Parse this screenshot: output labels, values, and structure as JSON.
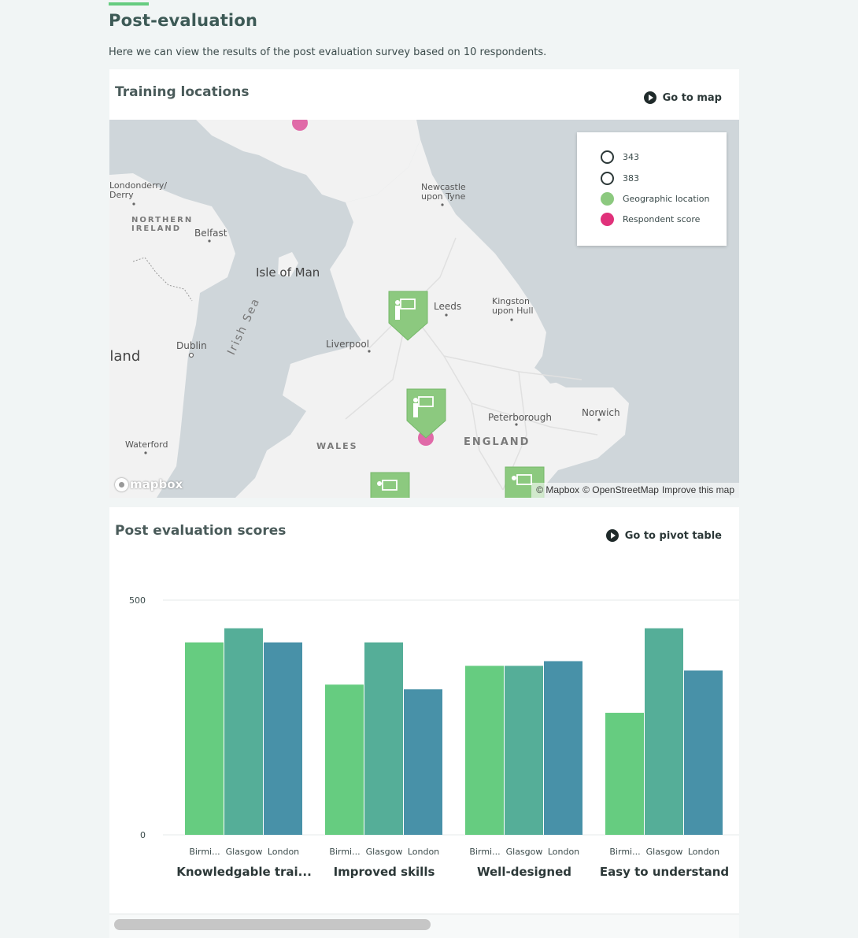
{
  "page": {
    "title": "Post-evaluation",
    "description": "Here we can view the results of the post evaluation survey based on 10 respondents."
  },
  "map_card": {
    "title": "Training locations",
    "link_label": "Go to map",
    "legend": [
      {
        "label": "343",
        "style": "outline"
      },
      {
        "label": "383",
        "style": "outline"
      },
      {
        "label": "Geographic location",
        "style": "filled",
        "color": "#8cc97f"
      },
      {
        "label": "Respondent score",
        "style": "filled",
        "color": "#e0317a"
      }
    ],
    "place_labels": {
      "londonderry": "Londonderry/\nDerry",
      "northern_ireland": "NORTHERN\nIRELAND",
      "belfast": "Belfast",
      "isle_of_man": "Isle of Man",
      "newcastle": "Newcastle\nupon Tyne",
      "leeds": "Leeds",
      "kingston": "Kingston\nupon Hull",
      "dublin": "Dublin",
      "ireland": "Ireland",
      "irish_sea": "Irish Sea",
      "liverpool": "Liverpool",
      "peterborough": "Peterborough",
      "norwich": "Norwich",
      "england": "ENGLAND",
      "wales": "WALES",
      "waterford": "Waterford"
    },
    "attribution": {
      "mapbox_logo": "mapbox",
      "mapbox": "© Mapbox",
      "osm": "© OpenStreetMap",
      "improve": "Improve this map"
    },
    "colors": {
      "land": "#f2f2f2",
      "water": "#cfd6da",
      "marker": "#8cc97f",
      "respondent": "#e06aa8"
    }
  },
  "chart_card": {
    "title": "Post evaluation scores",
    "link_label": "Go to pivot table"
  },
  "chart_data": {
    "type": "bar",
    "ylim": [
      0,
      500
    ],
    "yticks": [
      "0",
      "500"
    ],
    "groups": [
      {
        "label": "Knowledgable trai...",
        "bars": [
          {
            "label": "Birmi...",
            "value": 410
          },
          {
            "label": "Glasgow",
            "value": 440
          },
          {
            "label": "London",
            "value": 410
          }
        ]
      },
      {
        "label": "Improved skills",
        "bars": [
          {
            "label": "Birmi...",
            "value": 320
          },
          {
            "label": "Glasgow",
            "value": 410
          },
          {
            "label": "London",
            "value": 310
          }
        ]
      },
      {
        "label": "Well-designed",
        "bars": [
          {
            "label": "Birmi...",
            "value": 360
          },
          {
            "label": "Glasgow",
            "value": 360
          },
          {
            "label": "London",
            "value": 370
          }
        ]
      },
      {
        "label": "Easy to understand",
        "bars": [
          {
            "label": "Birmi...",
            "value": 260
          },
          {
            "label": "Glasgow",
            "value": 440
          },
          {
            "label": "London",
            "value": 350
          }
        ]
      }
    ],
    "colors": [
      "#66cc80",
      "#55ae98",
      "#4891a8"
    ],
    "grid": true
  }
}
